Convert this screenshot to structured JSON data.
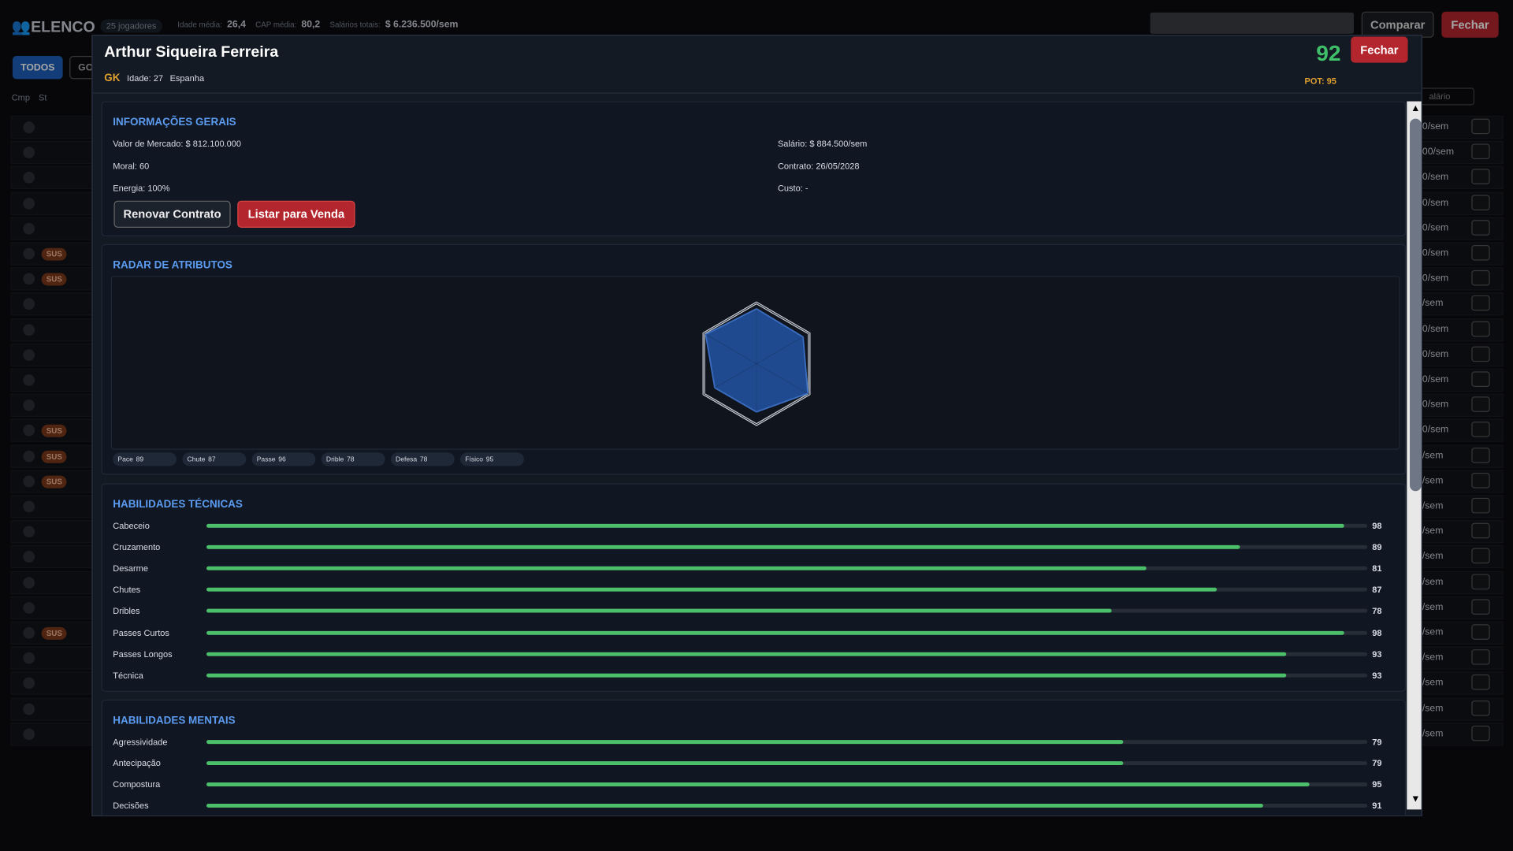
{
  "header": {
    "title": "ELENCO",
    "player_count": "25 jogadores",
    "stats": [
      {
        "label": "Idade média:",
        "value": "26,4"
      },
      {
        "label": "CAP média:",
        "value": "80,2"
      },
      {
        "label": "Salários totais:",
        "value": "$ 6.236.500/sem"
      }
    ],
    "buttons": [
      "Comparar",
      "Fechar"
    ]
  },
  "filters": [
    "TODOS",
    "GO"
  ],
  "columns": [
    "Cmp",
    "St",
    "alário"
  ],
  "rows": [
    {
      "salary": "0/sem"
    },
    {
      "salary": "00/sem"
    },
    {
      "salary": "0/sem"
    },
    {
      "salary": "0/sem"
    },
    {
      "salary": "0/sem"
    },
    {
      "salary": "0/sem",
      "status": "SUS"
    },
    {
      "salary": "0/sem",
      "status": "SUS"
    },
    {
      "salary": "/sem"
    },
    {
      "salary": "0/sem"
    },
    {
      "salary": "0/sem"
    },
    {
      "salary": "0/sem"
    },
    {
      "salary": "0/sem"
    },
    {
      "salary": "0/sem",
      "status": "SUS"
    },
    {
      "salary": "/sem",
      "status": "SUS"
    },
    {
      "salary": "/sem",
      "status": "SUS"
    },
    {
      "salary": "/sem"
    },
    {
      "salary": "/sem"
    },
    {
      "salary": "/sem"
    },
    {
      "salary": "/sem"
    },
    {
      "salary": "/sem"
    },
    {
      "salary": "/sem",
      "status": "SUS"
    },
    {
      "salary": "/sem"
    },
    {
      "salary": "/sem"
    },
    {
      "salary": "/sem"
    },
    {
      "salary": "/sem"
    }
  ],
  "modal": {
    "name": "Arthur Siqueira Ferreira",
    "position": "GK",
    "age": "Idade: 27",
    "nationality": "Espanha",
    "overall": 92,
    "potential": "POT: 95",
    "close": "Fechar",
    "general": {
      "title": "INFORMAÇÕES GERAIS",
      "left": [
        "Valor de Mercado: $ 812.100.000",
        "Moral: 60",
        "Energia: 100%"
      ],
      "right": [
        "Salário: $ 884.500/sem",
        "Contrato: 26/05/2028",
        "Custo: -"
      ],
      "buttons": [
        "Renovar Contrato",
        "Listar para Venda"
      ]
    },
    "radar": {
      "title": "RADAR DE ATRIBUTOS",
      "attributes": [
        {
          "name": "Pace",
          "value": 89
        },
        {
          "name": "Chute",
          "value": 87
        },
        {
          "name": "Passe",
          "value": 96
        },
        {
          "name": "Drible",
          "value": 78
        },
        {
          "name": "Defesa",
          "value": 78
        },
        {
          "name": "Físico",
          "value": 95
        }
      ]
    },
    "sections": [
      {
        "title": "HABILIDADES TÉCNICAS",
        "skills": [
          {
            "name": "Cabeceio",
            "value": 98
          },
          {
            "name": "Cruzamento",
            "value": 89
          },
          {
            "name": "Desarme",
            "value": 81
          },
          {
            "name": "Chutes",
            "value": 87
          },
          {
            "name": "Dribles",
            "value": 78
          },
          {
            "name": "Passes Curtos",
            "value": 98
          },
          {
            "name": "Passes Longos",
            "value": 93
          },
          {
            "name": "Técnica",
            "value": 93
          }
        ]
      },
      {
        "title": "HABILIDADES MENTAIS",
        "skills": [
          {
            "name": "Agressividade",
            "value": 79
          },
          {
            "name": "Antecipação",
            "value": 79
          },
          {
            "name": "Compostura",
            "value": 95
          },
          {
            "name": "Decisões",
            "value": 91
          }
        ]
      }
    ]
  }
}
